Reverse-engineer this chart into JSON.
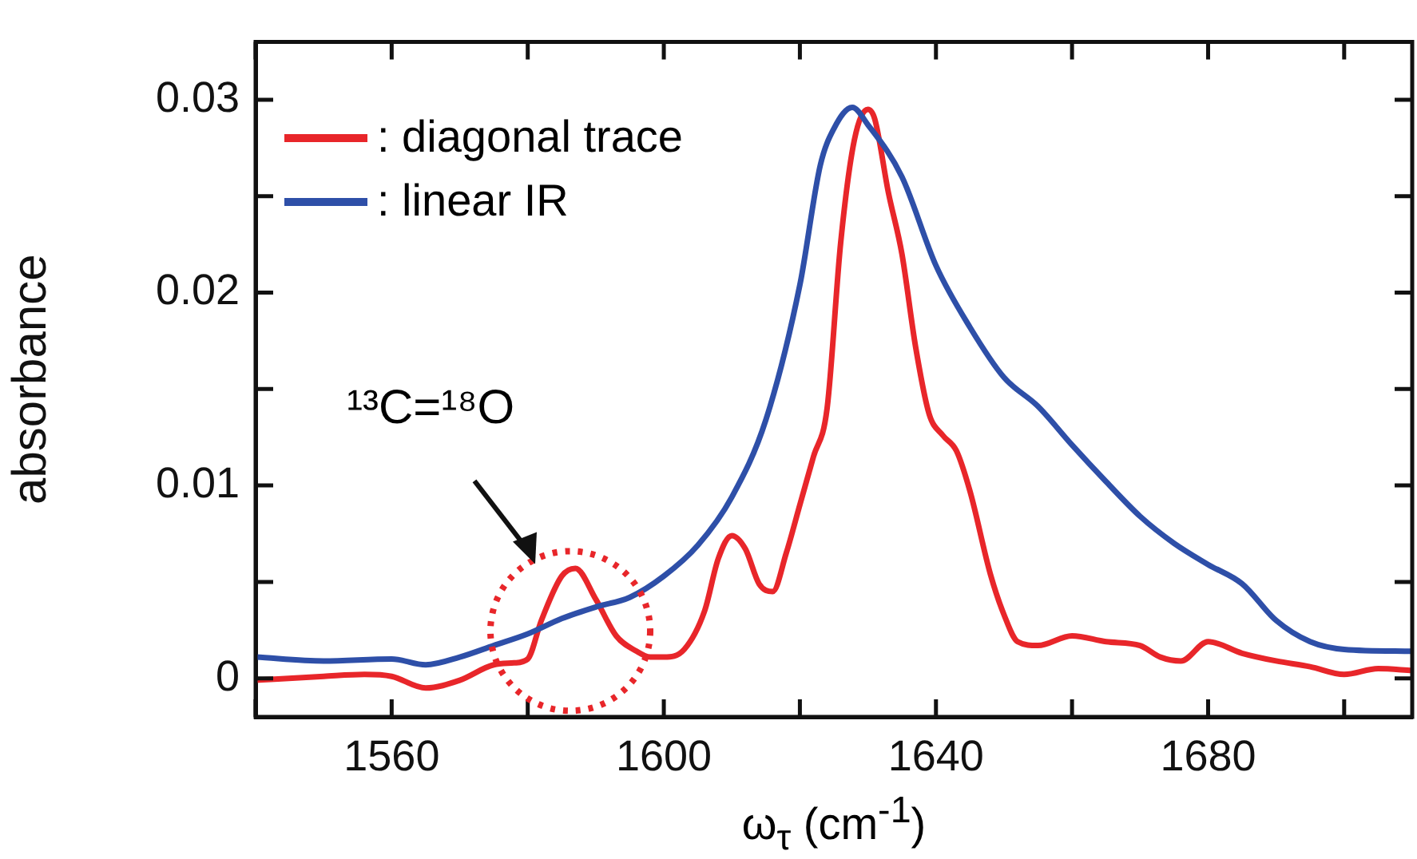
{
  "chart_data": {
    "type": "line",
    "xlabel": "ω$_{τ}$ (cm$^{-1}$)",
    "ylabel": "absorbance",
    "xlim": [
      1540,
      1710
    ],
    "ylim": [
      -0.002,
      0.033
    ],
    "xticks": [
      {
        "value": 1540,
        "label": null
      },
      1560,
      {
        "value": 1580,
        "label": null
      },
      1600,
      {
        "value": 1620,
        "label": null
      },
      1640,
      {
        "value": 1660,
        "label": null
      },
      1680,
      {
        "value": 1700,
        "label": null
      }
    ],
    "yticks": [
      0,
      {
        "value": 0.005,
        "label": null
      },
      0.01,
      {
        "value": 0.015,
        "label": null
      },
      0.02,
      {
        "value": 0.025,
        "label": null
      },
      0.03
    ],
    "grid": false,
    "legend": "top left",
    "marker": "none",
    "line_style": "solid",
    "annotations": [
      "¹³C=¹⁸O"
    ],
    "series": [
      {
        "name": ": linear IR",
        "color": "#2e4fa8",
        "x": [
          1540,
          1550,
          1560,
          1565,
          1570,
          1575,
          1580,
          1585,
          1590,
          1595,
          1600,
          1605,
          1610,
          1615,
          1620,
          1623,
          1625,
          1627.7,
          1630,
          1635,
          1640,
          1645,
          1650,
          1655,
          1660,
          1665,
          1670,
          1675,
          1680,
          1685,
          1690,
          1695,
          1700,
          1710
        ],
        "values": [
          0.0011,
          0.0009,
          0.001,
          0.0007,
          0.0011,
          0.0017,
          0.0023,
          0.0031,
          0.0037,
          0.0042,
          0.0053,
          0.0069,
          0.0094,
          0.0134,
          0.0204,
          0.0266,
          0.0285,
          0.0296,
          0.0287,
          0.026,
          0.0214,
          0.0182,
          0.0156,
          0.0141,
          0.0121,
          0.0102,
          0.0084,
          0.007,
          0.0059,
          0.0049,
          0.003,
          0.0019,
          0.0015,
          0.0014
        ]
      },
      {
        "name": ": diagonal trace",
        "color": "#e8262a",
        "x": [
          1540,
          1550,
          1556,
          1560,
          1565,
          1570,
          1575,
          1578,
          1580,
          1582,
          1585,
          1587,
          1590,
          1593,
          1596,
          1598,
          1600,
          1603,
          1606,
          1608,
          1610,
          1612,
          1614,
          1616,
          1618,
          1620,
          1622,
          1624,
          1626,
          1628,
          1630,
          1631,
          1633,
          1635,
          1637,
          1639,
          1641,
          1643,
          1645,
          1648,
          1650,
          1652,
          1655,
          1660,
          1665,
          1670,
          1673,
          1676,
          1680,
          1685,
          1690,
          1695,
          1700,
          1705,
          1710
        ],
        "values": [
          -0.0001,
          0.0001,
          0.0002,
          0.0001,
          -0.0005,
          -0.0001,
          0.0007,
          0.0008,
          0.001,
          0.003,
          0.0053,
          0.0057,
          0.0041,
          0.0022,
          0.0014,
          0.0011,
          0.0011,
          0.0015,
          0.0035,
          0.0062,
          0.0074,
          0.0067,
          0.0049,
          0.0045,
          0.0065,
          0.009,
          0.0115,
          0.014,
          0.0226,
          0.0279,
          0.0295,
          0.029,
          0.0252,
          0.022,
          0.0172,
          0.0137,
          0.0126,
          0.0118,
          0.0097,
          0.0054,
          0.0033,
          0.0019,
          0.0017,
          0.0022,
          0.0019,
          0.0017,
          0.0011,
          0.0009,
          0.0019,
          0.0013,
          0.0009,
          0.0006,
          0.0002,
          0.0005,
          0.0004
        ]
      }
    ]
  }
}
